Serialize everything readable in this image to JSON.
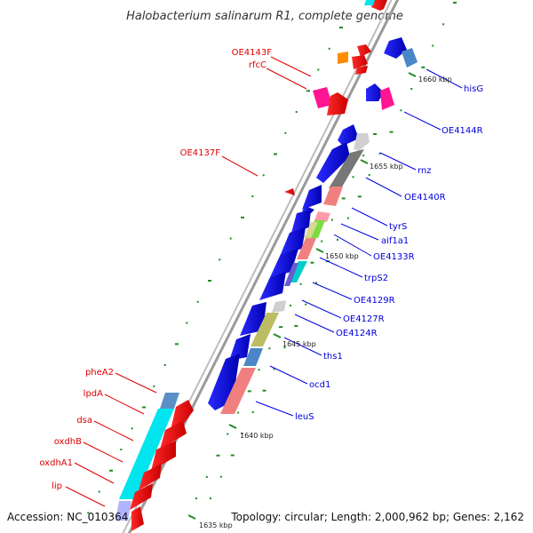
{
  "title": "Halobacterium salinarum R1, complete genome",
  "footer": {
    "accession": "Accession: NC_010364",
    "summary": "Topology: circular; Length: 2,000,962 bp; Genes: 2,162"
  },
  "colors": {
    "forward": "#dd0000",
    "reverse": "#0000dd",
    "backbone": "#999999",
    "gc_tick": "#228b22"
  },
  "ticks": [
    {
      "label": "1635 kbp"
    },
    {
      "label": "1640 kbp"
    },
    {
      "label": "1645 kbp"
    },
    {
      "label": "1650 kbp"
    },
    {
      "label": "1655 kbp"
    },
    {
      "label": "1660 kbp"
    }
  ],
  "forward_labels": [
    "OE4143F",
    "rfcC",
    "OE4137F",
    "pheA2",
    "lpdA",
    "dsa",
    "oxdhB",
    "oxdhA1",
    "lip"
  ],
  "reverse_labels": [
    "hisG",
    "OE4144R",
    "rnz",
    "OE4140R",
    "tyrS",
    "aif1a1",
    "OE4133R",
    "trpS2",
    "OE4129R",
    "OE4127R",
    "OE4124R",
    "ths1",
    "ocd1",
    "leuS"
  ],
  "icons": {
    "gene_arrow": "gene-arrow-icon"
  }
}
